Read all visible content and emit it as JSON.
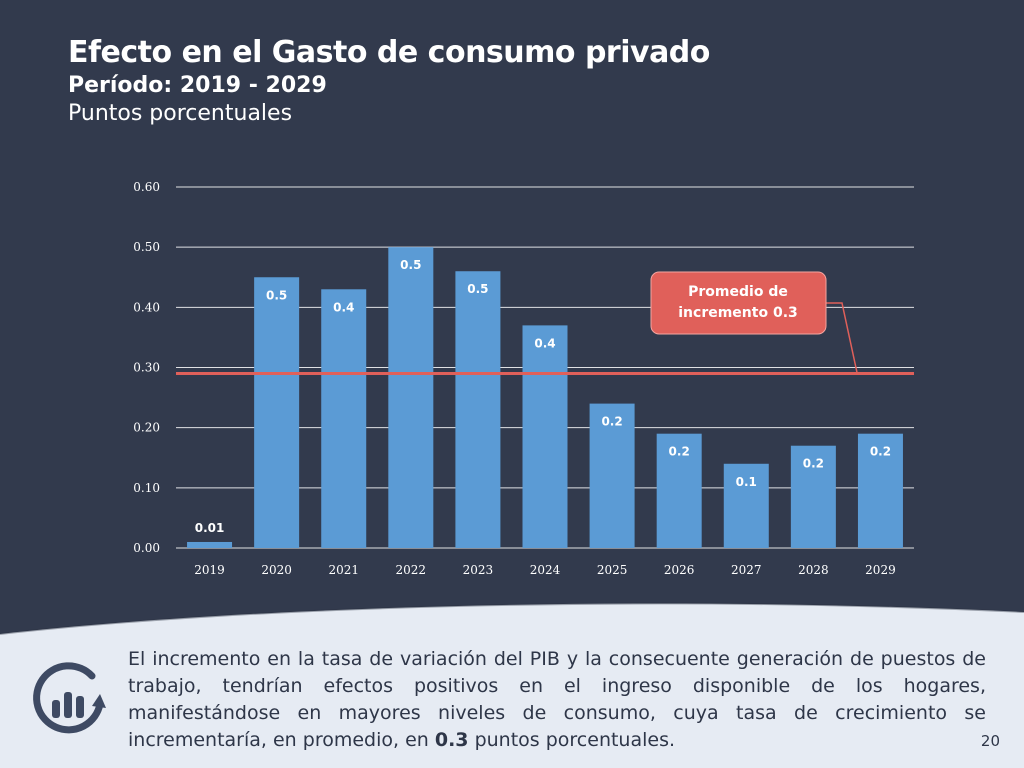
{
  "header": {
    "title": "Efecto en el Gasto de consumo privado",
    "subtitle": "Período: 2019 - 2029",
    "unit": "Puntos porcentuales"
  },
  "chart_data": {
    "type": "bar",
    "categories": [
      "2019",
      "2020",
      "2021",
      "2022",
      "2023",
      "2024",
      "2025",
      "2026",
      "2027",
      "2028",
      "2029"
    ],
    "values": [
      0.01,
      0.45,
      0.43,
      0.5,
      0.46,
      0.37,
      0.24,
      0.19,
      0.14,
      0.17,
      0.19
    ],
    "data_labels": [
      "0.01",
      "0.5",
      "0.4",
      "0.5",
      "0.5",
      "0.4",
      "0.2",
      "0.2",
      "0.1",
      "0.2",
      "0.2"
    ],
    "y_ticks": [
      "0.00",
      "0.10",
      "0.20",
      "0.30",
      "0.40",
      "0.50",
      "0.60"
    ],
    "ylim": [
      0,
      0.6
    ],
    "grid": true,
    "average_line": {
      "value": 0.29,
      "label_line1": "Promedio de",
      "label_line2": "incremento 0.3"
    },
    "colors": {
      "bar": "#5b9bd5",
      "average": "#e0605a",
      "grid": "#ffffff",
      "axis_text": "#ffffff"
    }
  },
  "footer": {
    "text_before": "El incremento en la tasa de variación del PIB y la consecuente generación de puestos de trabajo, tendrían efectos positivos en el ingreso disponible de los hogares, manifestándose en mayores niveles de consumo, cuya tasa de crecimiento se incrementaría, en promedio, en ",
    "text_bold": "0.3",
    "text_after": " puntos porcentuales.",
    "icon": "growth-chart-cycle-icon",
    "page_number": "20"
  }
}
